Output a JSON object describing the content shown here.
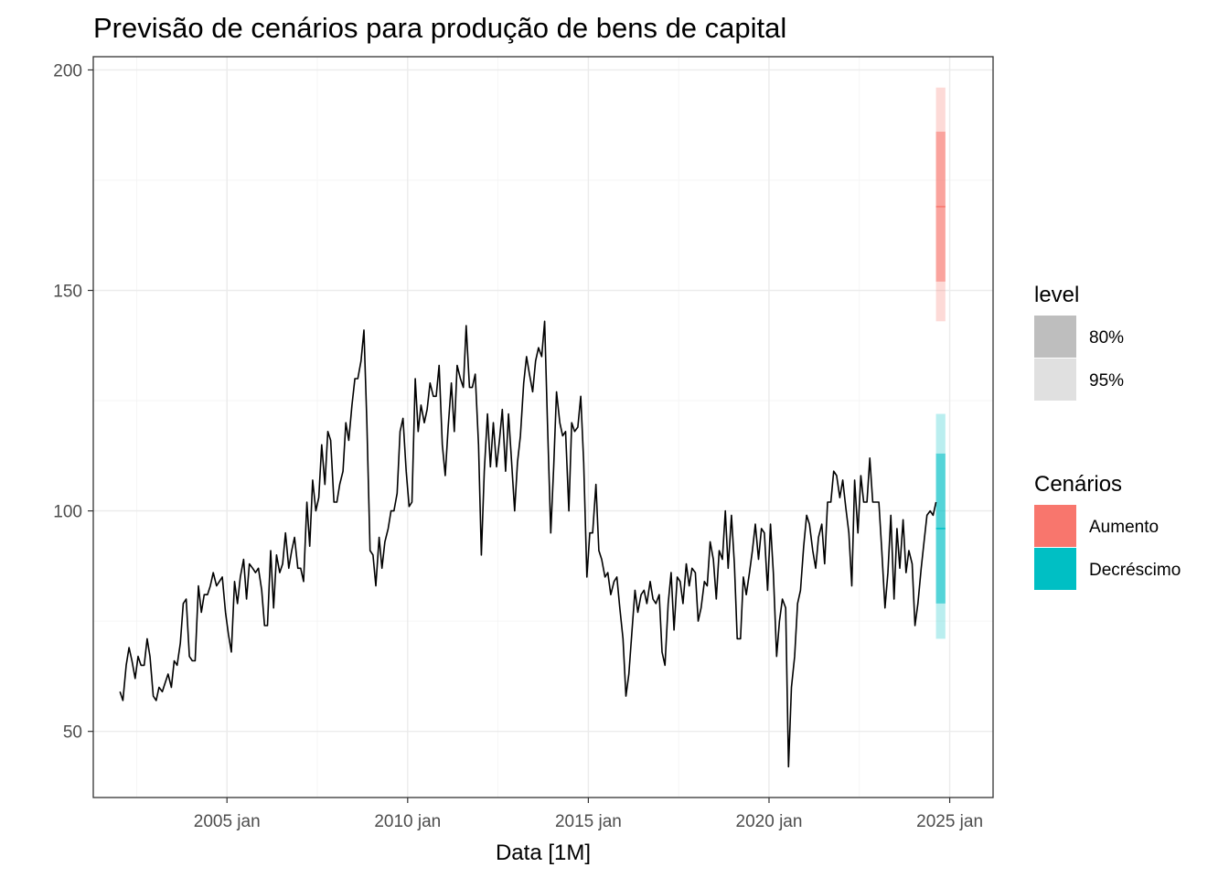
{
  "chart_data": {
    "type": "line",
    "title": "Previsão de cenários para produção de bens de capital",
    "xlabel": "Data [1M]",
    "ylabel": "",
    "xlim": [
      2001.3,
      2026.2
    ],
    "ylim": [
      35,
      203
    ],
    "x_ticks": [
      {
        "value": 2005,
        "label": "2005 jan"
      },
      {
        "value": 2010,
        "label": "2010 jan"
      },
      {
        "value": 2015,
        "label": "2015 jan"
      },
      {
        "value": 2020,
        "label": "2020 jan"
      },
      {
        "value": 2025,
        "label": "2025 jan"
      }
    ],
    "y_ticks": [
      {
        "value": 50,
        "label": "50"
      },
      {
        "value": 100,
        "label": "100"
      },
      {
        "value": 150,
        "label": "150"
      },
      {
        "value": 200,
        "label": "200"
      }
    ],
    "grid": true,
    "series": [
      {
        "color": "#000000",
        "points": [
          [
            2002.04,
            59
          ],
          [
            2002.12,
            57
          ],
          [
            2002.21,
            65
          ],
          [
            2002.29,
            69
          ],
          [
            2002.37,
            66
          ],
          [
            2002.46,
            62
          ],
          [
            2002.54,
            67
          ],
          [
            2002.62,
            65
          ],
          [
            2002.71,
            65
          ],
          [
            2002.79,
            71
          ],
          [
            2002.87,
            67
          ],
          [
            2002.96,
            58
          ],
          [
            2003.04,
            57
          ],
          [
            2003.12,
            60
          ],
          [
            2003.21,
            59
          ],
          [
            2003.29,
            61
          ],
          [
            2003.37,
            63
          ],
          [
            2003.46,
            60
          ],
          [
            2003.54,
            66
          ],
          [
            2003.62,
            65
          ],
          [
            2003.71,
            70
          ],
          [
            2003.79,
            79
          ],
          [
            2003.87,
            80
          ],
          [
            2003.96,
            67
          ],
          [
            2004.04,
            66
          ],
          [
            2004.12,
            66
          ],
          [
            2004.21,
            83
          ],
          [
            2004.29,
            77
          ],
          [
            2004.37,
            81
          ],
          [
            2004.46,
            81
          ],
          [
            2004.54,
            83
          ],
          [
            2004.62,
            86
          ],
          [
            2004.71,
            83
          ],
          [
            2004.79,
            84
          ],
          [
            2004.87,
            85
          ],
          [
            2004.96,
            77
          ],
          [
            2005.04,
            72
          ],
          [
            2005.12,
            68
          ],
          [
            2005.21,
            84
          ],
          [
            2005.29,
            79
          ],
          [
            2005.37,
            85
          ],
          [
            2005.46,
            89
          ],
          [
            2005.54,
            80
          ],
          [
            2005.62,
            88
          ],
          [
            2005.71,
            87
          ],
          [
            2005.79,
            86
          ],
          [
            2005.87,
            87
          ],
          [
            2005.96,
            82
          ],
          [
            2006.04,
            74
          ],
          [
            2006.12,
            74
          ],
          [
            2006.21,
            91
          ],
          [
            2006.29,
            78
          ],
          [
            2006.37,
            90
          ],
          [
            2006.46,
            86
          ],
          [
            2006.54,
            88
          ],
          [
            2006.62,
            95
          ],
          [
            2006.71,
            87
          ],
          [
            2006.79,
            91
          ],
          [
            2006.87,
            94
          ],
          [
            2006.96,
            87
          ],
          [
            2007.04,
            87
          ],
          [
            2007.12,
            84
          ],
          [
            2007.21,
            102
          ],
          [
            2007.29,
            92
          ],
          [
            2007.37,
            107
          ],
          [
            2007.46,
            100
          ],
          [
            2007.54,
            103
          ],
          [
            2007.62,
            115
          ],
          [
            2007.71,
            106
          ],
          [
            2007.79,
            118
          ],
          [
            2007.87,
            116
          ],
          [
            2007.96,
            102
          ],
          [
            2008.04,
            102
          ],
          [
            2008.12,
            106
          ],
          [
            2008.21,
            109
          ],
          [
            2008.29,
            120
          ],
          [
            2008.37,
            116
          ],
          [
            2008.46,
            124
          ],
          [
            2008.54,
            130
          ],
          [
            2008.62,
            130
          ],
          [
            2008.71,
            134
          ],
          [
            2008.79,
            141
          ],
          [
            2008.87,
            120
          ],
          [
            2008.96,
            91
          ],
          [
            2009.04,
            90
          ],
          [
            2009.12,
            83
          ],
          [
            2009.21,
            94
          ],
          [
            2009.29,
            87
          ],
          [
            2009.37,
            93
          ],
          [
            2009.46,
            96
          ],
          [
            2009.54,
            100
          ],
          [
            2009.62,
            100
          ],
          [
            2009.71,
            104
          ],
          [
            2009.79,
            118
          ],
          [
            2009.87,
            121
          ],
          [
            2009.96,
            109
          ],
          [
            2010.04,
            101
          ],
          [
            2010.12,
            102
          ],
          [
            2010.21,
            130
          ],
          [
            2010.29,
            118
          ],
          [
            2010.37,
            124
          ],
          [
            2010.46,
            120
          ],
          [
            2010.54,
            123
          ],
          [
            2010.62,
            129
          ],
          [
            2010.71,
            126
          ],
          [
            2010.79,
            126
          ],
          [
            2010.87,
            133
          ],
          [
            2010.96,
            115
          ],
          [
            2011.04,
            108
          ],
          [
            2011.12,
            119
          ],
          [
            2011.21,
            129
          ],
          [
            2011.29,
            118
          ],
          [
            2011.37,
            133
          ],
          [
            2011.46,
            130
          ],
          [
            2011.54,
            128
          ],
          [
            2011.62,
            142
          ],
          [
            2011.71,
            128
          ],
          [
            2011.79,
            128
          ],
          [
            2011.87,
            131
          ],
          [
            2011.96,
            115
          ],
          [
            2012.04,
            90
          ],
          [
            2012.12,
            109
          ],
          [
            2012.21,
            122
          ],
          [
            2012.29,
            110
          ],
          [
            2012.37,
            120
          ],
          [
            2012.46,
            110
          ],
          [
            2012.54,
            116
          ],
          [
            2012.62,
            123
          ],
          [
            2012.71,
            109
          ],
          [
            2012.79,
            122
          ],
          [
            2012.87,
            112
          ],
          [
            2012.96,
            100
          ],
          [
            2013.04,
            111
          ],
          [
            2013.12,
            117
          ],
          [
            2013.21,
            129
          ],
          [
            2013.29,
            135
          ],
          [
            2013.37,
            131
          ],
          [
            2013.46,
            127
          ],
          [
            2013.54,
            134
          ],
          [
            2013.62,
            137
          ],
          [
            2013.71,
            135
          ],
          [
            2013.79,
            143
          ],
          [
            2013.87,
            120
          ],
          [
            2013.96,
            95
          ],
          [
            2014.04,
            110
          ],
          [
            2014.12,
            127
          ],
          [
            2014.21,
            120
          ],
          [
            2014.29,
            117
          ],
          [
            2014.37,
            118
          ],
          [
            2014.46,
            100
          ],
          [
            2014.54,
            120
          ],
          [
            2014.62,
            118
          ],
          [
            2014.71,
            119
          ],
          [
            2014.79,
            126
          ],
          [
            2014.87,
            111
          ],
          [
            2014.96,
            85
          ],
          [
            2015.04,
            95
          ],
          [
            2015.12,
            95
          ],
          [
            2015.21,
            106
          ],
          [
            2015.29,
            91
          ],
          [
            2015.37,
            89
          ],
          [
            2015.46,
            85
          ],
          [
            2015.54,
            86
          ],
          [
            2015.62,
            81
          ],
          [
            2015.71,
            84
          ],
          [
            2015.79,
            85
          ],
          [
            2015.87,
            78
          ],
          [
            2015.96,
            71
          ],
          [
            2016.04,
            58
          ],
          [
            2016.12,
            63
          ],
          [
            2016.21,
            73
          ],
          [
            2016.29,
            82
          ],
          [
            2016.37,
            77
          ],
          [
            2016.46,
            81
          ],
          [
            2016.54,
            82
          ],
          [
            2016.62,
            79
          ],
          [
            2016.71,
            84
          ],
          [
            2016.79,
            80
          ],
          [
            2016.87,
            79
          ],
          [
            2016.96,
            81
          ],
          [
            2017.04,
            68
          ],
          [
            2017.12,
            65
          ],
          [
            2017.21,
            79
          ],
          [
            2017.29,
            86
          ],
          [
            2017.37,
            73
          ],
          [
            2017.46,
            85
          ],
          [
            2017.54,
            84
          ],
          [
            2017.62,
            79
          ],
          [
            2017.71,
            88
          ],
          [
            2017.79,
            83
          ],
          [
            2017.87,
            87
          ],
          [
            2017.96,
            86
          ],
          [
            2018.04,
            75
          ],
          [
            2018.12,
            78
          ],
          [
            2018.21,
            84
          ],
          [
            2018.29,
            83
          ],
          [
            2018.37,
            93
          ],
          [
            2018.46,
            89
          ],
          [
            2018.54,
            80
          ],
          [
            2018.62,
            91
          ],
          [
            2018.71,
            89
          ],
          [
            2018.79,
            100
          ],
          [
            2018.87,
            87
          ],
          [
            2018.96,
            99
          ],
          [
            2019.04,
            88
          ],
          [
            2019.12,
            71
          ],
          [
            2019.21,
            71
          ],
          [
            2019.29,
            85
          ],
          [
            2019.37,
            81
          ],
          [
            2019.46,
            86
          ],
          [
            2019.54,
            91
          ],
          [
            2019.62,
            97
          ],
          [
            2019.71,
            89
          ],
          [
            2019.79,
            96
          ],
          [
            2019.87,
            95
          ],
          [
            2019.96,
            82
          ],
          [
            2020.04,
            97
          ],
          [
            2020.12,
            86
          ],
          [
            2020.21,
            67
          ],
          [
            2020.29,
            75
          ],
          [
            2020.37,
            80
          ],
          [
            2020.46,
            78
          ],
          [
            2020.54,
            42
          ],
          [
            2020.62,
            60
          ],
          [
            2020.71,
            67
          ],
          [
            2020.79,
            79
          ],
          [
            2020.87,
            82
          ],
          [
            2020.96,
            92
          ],
          [
            2021.04,
            99
          ],
          [
            2021.12,
            97
          ],
          [
            2021.21,
            91
          ],
          [
            2021.29,
            87
          ],
          [
            2021.37,
            94
          ],
          [
            2021.46,
            97
          ],
          [
            2021.54,
            88
          ],
          [
            2021.62,
            102
          ],
          [
            2021.71,
            102
          ],
          [
            2021.79,
            109
          ],
          [
            2021.87,
            108
          ],
          [
            2021.96,
            103
          ],
          [
            2022.04,
            107
          ],
          [
            2022.12,
            101
          ],
          [
            2022.21,
            95
          ],
          [
            2022.29,
            83
          ],
          [
            2022.37,
            107
          ],
          [
            2022.46,
            95
          ],
          [
            2022.54,
            108
          ],
          [
            2022.62,
            102
          ],
          [
            2022.71,
            102
          ],
          [
            2022.79,
            112
          ],
          [
            2022.87,
            102
          ],
          [
            2022.96,
            102
          ],
          [
            2023.04,
            102
          ],
          [
            2023.12,
            91
          ],
          [
            2023.21,
            78
          ],
          [
            2023.29,
            86
          ],
          [
            2023.37,
            99
          ],
          [
            2023.46,
            80
          ],
          [
            2023.54,
            96
          ],
          [
            2023.62,
            87
          ],
          [
            2023.71,
            98
          ],
          [
            2023.79,
            86
          ],
          [
            2023.87,
            91
          ],
          [
            2023.96,
            88
          ],
          [
            2024.04,
            74
          ],
          [
            2024.12,
            79
          ],
          [
            2024.21,
            87
          ],
          [
            2024.29,
            93
          ],
          [
            2024.37,
            99
          ],
          [
            2024.46,
            100
          ],
          [
            2024.54,
            99
          ],
          [
            2024.62,
            102
          ]
        ]
      }
    ],
    "forecasts": [
      {
        "name": "Aumento",
        "color": "#F8766D",
        "x": [
          2024.62,
          2024.88
        ],
        "mean": 169,
        "interval_80": [
          152,
          186
        ],
        "interval_95": [
          143,
          196
        ]
      },
      {
        "name": "Decréscimo",
        "color": "#00BFC4",
        "x": [
          2024.62,
          2024.88
        ],
        "mean": 96,
        "interval_80": [
          79,
          113
        ],
        "interval_95": [
          71,
          122
        ]
      }
    ],
    "legends": [
      {
        "title": "level",
        "entries": [
          {
            "label": "80%",
            "color": "#bebebe"
          },
          {
            "label": "95%",
            "color": "#e0e0e0"
          }
        ]
      },
      {
        "title": "Cenários",
        "entries": [
          {
            "label": "Aumento",
            "color": "#F8766D"
          },
          {
            "label": "Decréscimo",
            "color": "#00BFC4"
          }
        ]
      }
    ],
    "legend_position": "right"
  }
}
